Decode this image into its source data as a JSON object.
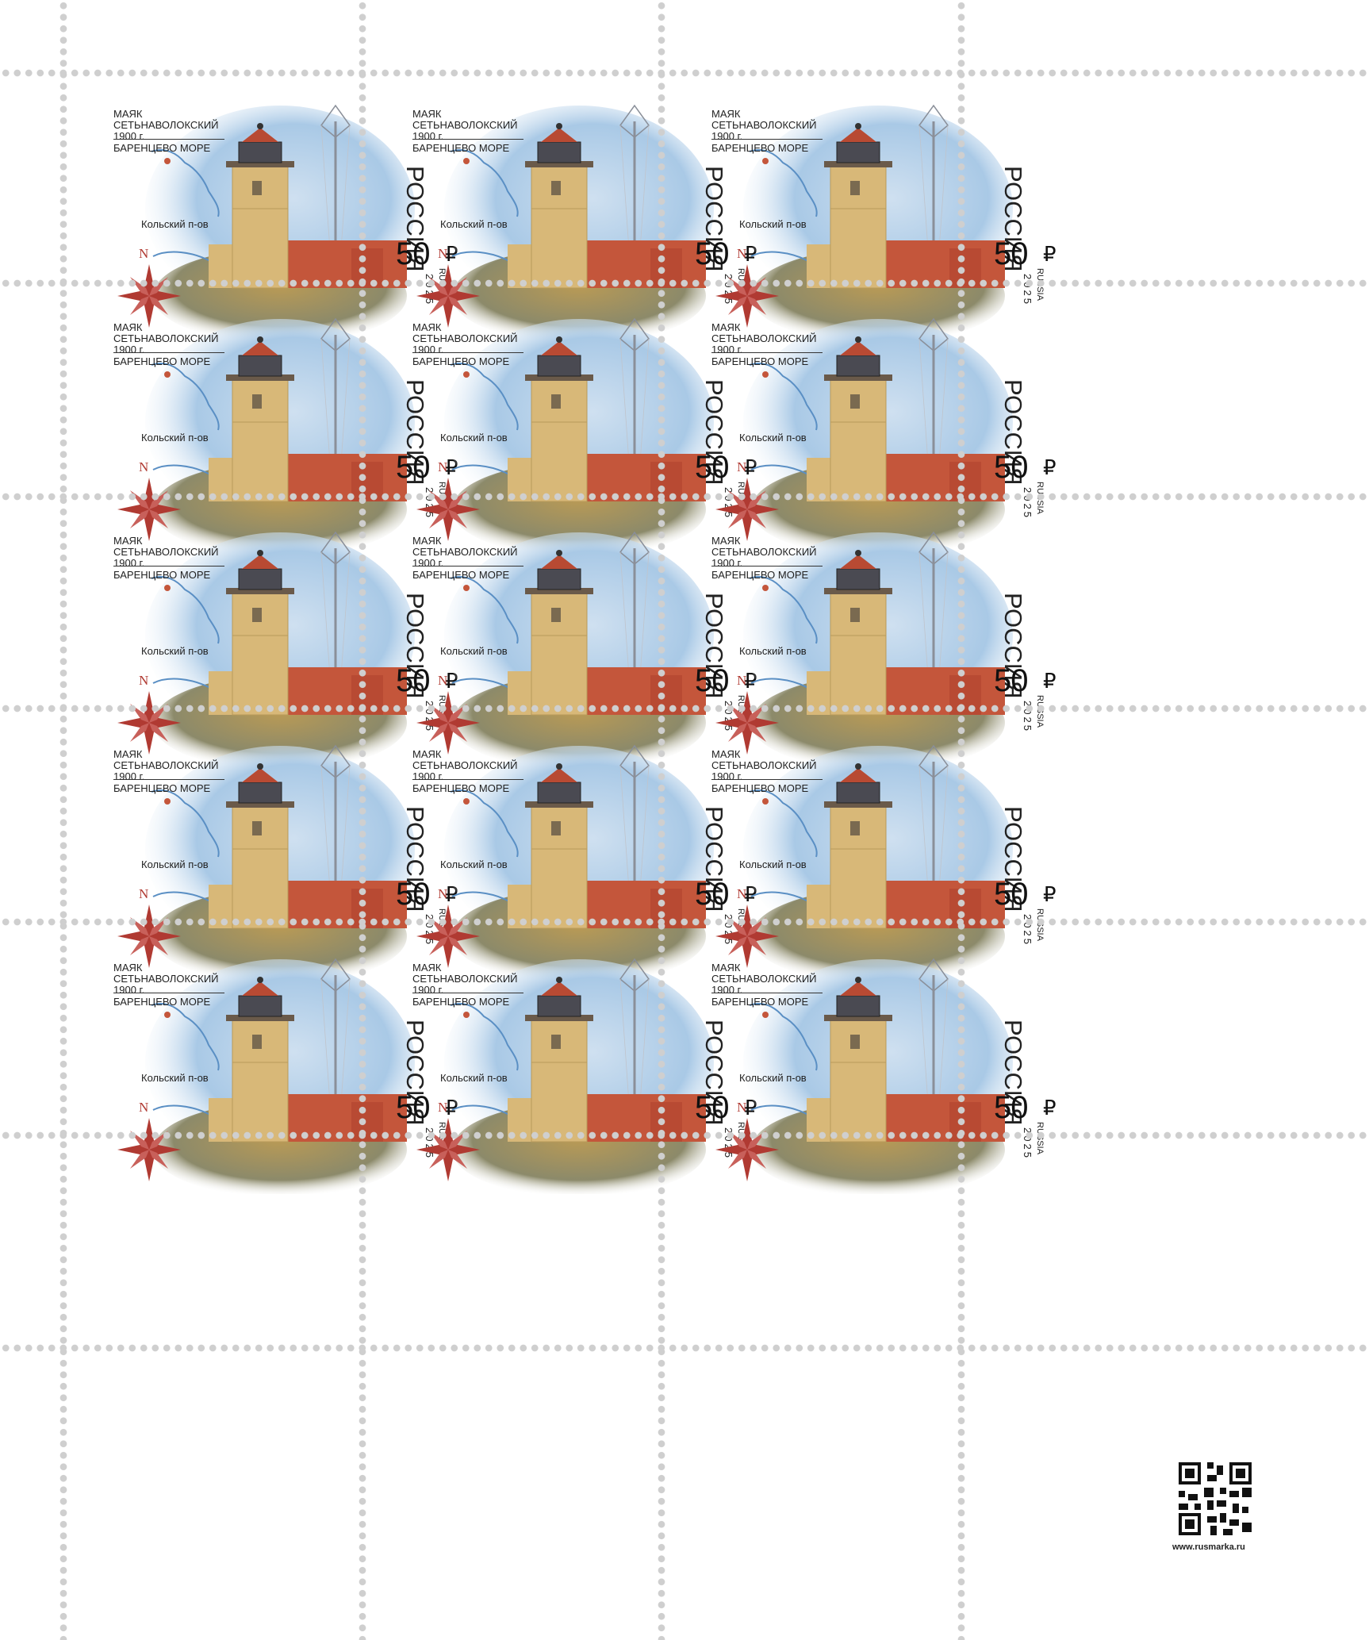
{
  "stamp": {
    "title_line1": "МАЯК",
    "title_line2": "СЕТЬНАВОЛОКСКИЙ",
    "title_line3": "1900 г.",
    "subtitle": "БАРЕНЦЕВО МОРЕ",
    "map_label": "Кольский п-ов",
    "compass_label": "N",
    "country": "РОССИЯ",
    "value": "50",
    "currency": "₽",
    "country_latin": "RUSSIA",
    "year": "2025"
  },
  "rows": 5,
  "columns": 3,
  "website": "www.rusmarka.ru",
  "icons": [
    "lighthouse-illustration",
    "compass-rose-icon",
    "map-outline-icon",
    "qr-code-icon"
  ],
  "colors": {
    "sky": "#a9c9e6",
    "tower": "#d8b878",
    "roof": "#c4563b",
    "compass": "#b03a32",
    "perforation": "#cfcfcf"
  }
}
